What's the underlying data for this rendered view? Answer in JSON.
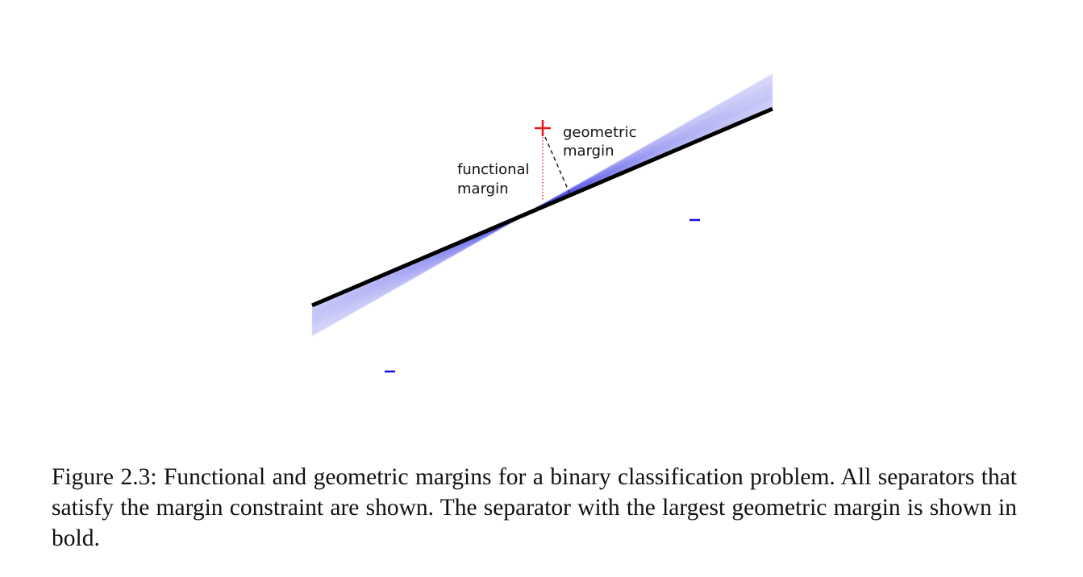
{
  "diagram": {
    "labels": {
      "functional_margin_line1": "functional",
      "functional_margin_line2": "margin",
      "geometric_margin_line1": "geometric",
      "geometric_margin_line2": "margin"
    },
    "points": {
      "positive_symbol": "+",
      "negative_symbol": "–"
    },
    "colors": {
      "positive": "#e8141c",
      "negative": "#1010e0",
      "separator_bold": "#000000",
      "separator_candidates": "#4a4ae8",
      "margin_lines": "#222222"
    }
  },
  "caption": {
    "text": "Figure 2.3: Functional and geometric margins for a binary classification problem. All separators that satisfy the margin constraint are shown. The separator with the largest geometric margin is shown in bold."
  }
}
